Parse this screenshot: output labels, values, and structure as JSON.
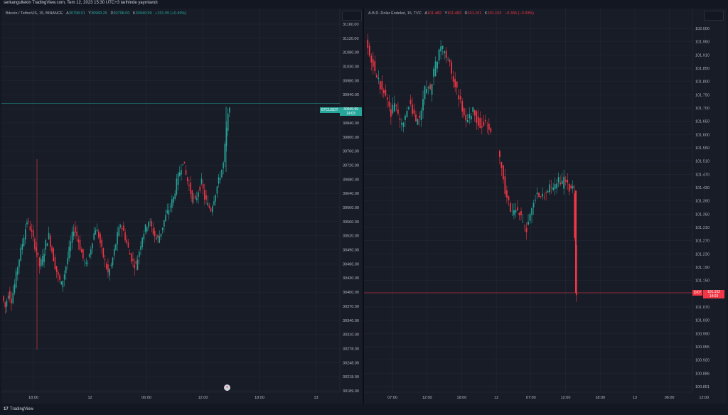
{
  "header": {
    "caption": "serkangultekin TradingView.com, Tem 12, 2023 15:30 UTC+3 tarihinde yayınlandı"
  },
  "footer": {
    "brand_mark": "17",
    "brand": "TradingView"
  },
  "colors": {
    "up": "#26a69a",
    "down": "#f23645",
    "grid": "#262a36",
    "axis_text": "#b2b5be",
    "background": "#181c27"
  },
  "left_chart": {
    "title": "Bitcoin / TetherUS, 15, BINANCE",
    "ohlc": {
      "o_label": "A",
      "o": "30798.01",
      "h_label": "Y",
      "h": "30983.25",
      "l_label": "D",
      "l": "30798.00",
      "c_label": "K",
      "c": "30949.99",
      "change": "+151.99 (+0.49%)"
    },
    "symbol_tag": "BTCUSDT",
    "last_price": "30949.99",
    "countdown": "14:03",
    "event_icon": "flag-event-icon"
  },
  "right_chart": {
    "title": "A.B.D. Dolar Endeksi, 15, TVC",
    "ohlc": {
      "o_label": "A",
      "o": "101.482",
      "h_label": "Y",
      "h": "101.482",
      "l_label": "D",
      "l": "101.151",
      "c_label": "K",
      "c": "101.152",
      "change": "−0.336 (−0.33%)"
    },
    "symbol_tag": "DXY",
    "last_price": "101.152",
    "countdown": "14:03"
  },
  "chart_data": [
    {
      "type": "candlestick",
      "title": "Bitcoin / TetherUS, 15, BINANCE",
      "last": 30949.99,
      "y_ticks": [
        "31160.00",
        "31120.00",
        "31080.00",
        "31030.00",
        "30980.00",
        "30940.00",
        "30890.00",
        "30840.00",
        "30800.00",
        "30760.00",
        "30720.00",
        "30680.00",
        "30640.00",
        "30600.00",
        "30560.00",
        "30520.00",
        "30490.00",
        "30460.00",
        "30430.00",
        "30400.00",
        "30370.00",
        "30340.00",
        "30310.00",
        "30278.00",
        "30248.00",
        "30218.00",
        "30189.00"
      ],
      "x_ticks": [
        "18:00",
        "12",
        "06:00",
        "12:00",
        "18:00",
        "13"
      ],
      "path": [
        30440,
        30410,
        30450,
        30430,
        30470,
        30520,
        30560,
        30600,
        30640,
        30620,
        30590,
        30560,
        30520,
        30540,
        30580,
        30600,
        30560,
        30520,
        30490,
        30470,
        30500,
        30540,
        30580,
        30620,
        30600,
        30570,
        30540,
        30520,
        30550,
        30590,
        30620,
        30600,
        30560,
        30530,
        30500,
        30520,
        30560,
        30600,
        30630,
        30610,
        30580,
        30550,
        30530,
        30520,
        30560,
        30600,
        30620,
        30640,
        30620,
        30600,
        30590,
        30610,
        30640,
        30660,
        30680,
        30700,
        30740,
        30770,
        30800,
        30760,
        30730,
        30700,
        30690,
        30720,
        30740,
        30700,
        30680,
        30670,
        30700,
        30730,
        30760,
        30790,
        30880,
        30950
      ],
      "grid": true
    },
    {
      "type": "candlestick",
      "title": "A.B.D. Dolar Endeksi, 15, TVC",
      "last": 101.152,
      "y_ticks": [
        "102.000",
        "101.950",
        "101.910",
        "101.850",
        "101.800",
        "101.750",
        "101.700",
        "101.650",
        "101.600",
        "101.550",
        "101.510",
        "101.470",
        "101.430",
        "101.390",
        "101.350",
        "101.310",
        "101.270",
        "101.230",
        "101.190",
        "101.150",
        "101.110",
        "101.070",
        "101.030",
        "100.990",
        "100.955",
        "100.920",
        "100.885",
        "100.851"
      ],
      "x_ticks": [
        "07:00",
        "12:00",
        "18:00",
        "12",
        "07:00",
        "12:00",
        "18:00",
        "13",
        "06:00",
        "12:00"
      ],
      "path": [
        101.95,
        101.92,
        101.88,
        101.85,
        101.82,
        101.8,
        101.76,
        101.73,
        101.76,
        101.72,
        101.69,
        101.72,
        101.76,
        101.73,
        101.7,
        101.72,
        101.78,
        101.82,
        101.8,
        101.86,
        101.9,
        101.94,
        101.93,
        101.9,
        101.86,
        101.82,
        101.78,
        101.74,
        101.7,
        101.72,
        101.74,
        101.71,
        101.69,
        101.7,
        101.68,
        101.68,
        null,
        101.6,
        101.55,
        101.48,
        101.44,
        101.41,
        101.42,
        101.4,
        101.38,
        101.36,
        101.4,
        101.44,
        101.48,
        101.46,
        101.47,
        101.48,
        101.49,
        101.5,
        101.51,
        101.5,
        101.52,
        101.49,
        101.48,
        101.152
      ],
      "grid": true
    }
  ]
}
